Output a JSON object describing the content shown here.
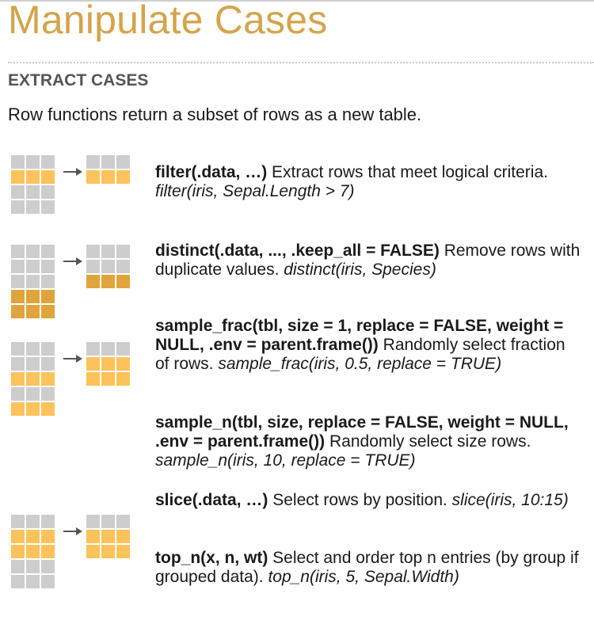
{
  "title": "Manipulate Cases",
  "section": "EXTRACT CASES",
  "intro": "Row functions return a subset of rows as a new table.",
  "colors": {
    "gray": "#cdcdcd",
    "yellow": "#fbc35a",
    "orange": "#e0a43c",
    "title": "#d4a44c",
    "arrow": "#555555"
  },
  "functions": [
    {
      "name": "filter",
      "args": "(.data, …)",
      "desc": " Extract rows that meet logical criteria. ",
      "example": "filter(iris, Sepal.Length > 7)",
      "tail": ""
    },
    {
      "name": "distinct",
      "args": "(.data, ..., .keep_all = FALSE)",
      "desc": " Remove rows with duplicate values. ",
      "example": "distinct(iris, Species)",
      "tail": ""
    },
    {
      "name": "sample_frac",
      "args": "(tbl, size = 1, replace = FALSE, weight = NULL, .env = parent.frame())",
      "desc": " Randomly select fraction of rows. ",
      "example": "sample_frac(iris, 0.5, replace = TRUE)",
      "tail": ""
    },
    {
      "name": "sample_n",
      "args": "(tbl, size, replace = FALSE, weight = NULL, .env = parent.frame())",
      "desc": " Randomly select size rows. ",
      "example": "sample_n(iris, 10, replace = TRUE)",
      "tail": ""
    },
    {
      "name": "slice",
      "args": "(.data, …)",
      "desc": " Select rows by position. ",
      "example": "slice(iris, 10:15)",
      "tail": ""
    },
    {
      "name": "top_n",
      "args": "(x, n, wt)",
      "desc": " Select and order top n entries (by group if grouped data). ",
      "example": "top_n(iris, 5, Sepal.Width)",
      "tail": ""
    }
  ],
  "diagrams": [
    {
      "input": [
        "gray",
        "yellow",
        "gray",
        "gray"
      ],
      "output": [
        "gray",
        "yellow"
      ]
    },
    {
      "input": [
        "gray",
        "gray",
        "gray",
        "orange",
        "orange"
      ],
      "output": [
        "gray",
        "gray",
        "orange"
      ]
    },
    {
      "input": [
        "gray",
        "gray",
        "yellow",
        "gray",
        "yellow"
      ],
      "output": [
        "gray",
        "yellow",
        "yellow"
      ]
    },
    {
      "input": [
        "gray",
        "yellow",
        "yellow",
        "gray",
        "gray"
      ],
      "output": [
        "gray",
        "yellow",
        "yellow"
      ]
    }
  ]
}
